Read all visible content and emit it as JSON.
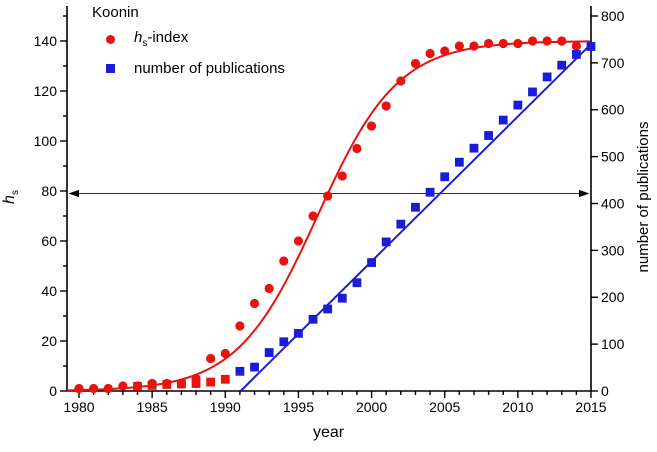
{
  "figure": {
    "legend": {
      "title": "Koonin",
      "item1": {
        "h": "h",
        "sub": "s",
        "rest": "-index"
      },
      "item2": {
        "label": "number of publications"
      }
    },
    "axes": {
      "x_label": "year",
      "y_left_label": {
        "h": "h",
        "sub": "s"
      },
      "y_right_label": "number of publications"
    }
  },
  "chart_data": {
    "type": "scatter",
    "title": "Koonin",
    "xlabel": "year",
    "ylabel_left": "h_s",
    "ylabel_right": "number of publications",
    "xlim": [
      1979.18,
      2015
    ],
    "ylim_left": [
      0,
      154
    ],
    "ylim_right": [
      0,
      821.33
    ],
    "x_major_ticks": [
      1980,
      1985,
      1990,
      1995,
      2000,
      2005,
      2010,
      2015
    ],
    "x_minor_step": 1,
    "left_major_ticks": [
      0,
      20,
      40,
      60,
      80,
      100,
      120,
      140
    ],
    "left_minor_step": 10,
    "right_major_ticks": [
      0,
      100,
      200,
      300,
      400,
      500,
      600,
      700,
      800
    ],
    "grid": false,
    "legend_position": "top-left",
    "colors": {
      "red": "#e8120e",
      "blue": "#1b1bd8",
      "arrow": "#333333",
      "axis": "#000000"
    },
    "series": [
      {
        "name": "hs-index",
        "marker": "circle",
        "axis": "left",
        "color": "#e8120e",
        "points": [
          [
            1980,
            1
          ],
          [
            1981,
            1
          ],
          [
            1982,
            1
          ],
          [
            1983,
            2
          ],
          [
            1984,
            2
          ],
          [
            1985,
            3
          ],
          [
            1986,
            3
          ],
          [
            1987,
            3
          ],
          [
            1988,
            5
          ],
          [
            1989,
            13
          ],
          [
            1990,
            15
          ],
          [
            1991,
            26
          ],
          [
            1992,
            35
          ],
          [
            1993,
            41
          ],
          [
            1994,
            52
          ],
          [
            1995,
            60
          ],
          [
            1996,
            70
          ],
          [
            1997,
            78
          ],
          [
            1998,
            86
          ],
          [
            1999,
            97
          ],
          [
            2000,
            106
          ],
          [
            2001,
            114
          ],
          [
            2002,
            124
          ],
          [
            2003,
            131
          ],
          [
            2004,
            135
          ],
          [
            2005,
            136
          ],
          [
            2006,
            138
          ],
          [
            2007,
            138
          ],
          [
            2008,
            139
          ],
          [
            2009,
            139
          ],
          [
            2010,
            139
          ],
          [
            2011,
            140
          ],
          [
            2012,
            140
          ],
          [
            2013,
            140
          ],
          [
            2014,
            138
          ]
        ]
      },
      {
        "name": "number of publications",
        "marker": "square",
        "axis": "right",
        "color": "#1b1bd8",
        "color_switch": {
          "before_year": 1991,
          "color": "#e8120e"
        },
        "points": [
          [
            1984,
            10
          ],
          [
            1985,
            12
          ],
          [
            1986,
            14
          ],
          [
            1987,
            15
          ],
          [
            1988,
            16
          ],
          [
            1989,
            19
          ],
          [
            1990,
            25
          ],
          [
            1991,
            42
          ],
          [
            1992,
            51
          ],
          [
            1993,
            82
          ],
          [
            1994,
            105
          ],
          [
            1995,
            123
          ],
          [
            1996,
            153
          ],
          [
            1997,
            175
          ],
          [
            1998,
            198
          ],
          [
            1999,
            231
          ],
          [
            2000,
            274
          ],
          [
            2001,
            318
          ],
          [
            2002,
            356
          ],
          [
            2003,
            392
          ],
          [
            2004,
            424
          ],
          [
            2005,
            457
          ],
          [
            2006,
            488
          ],
          [
            2007,
            518
          ],
          [
            2008,
            545
          ],
          [
            2009,
            578
          ],
          [
            2010,
            610
          ],
          [
            2011,
            638
          ],
          [
            2012,
            670
          ],
          [
            2013,
            695
          ],
          [
            2014,
            718
          ],
          [
            2015,
            735
          ]
        ]
      }
    ],
    "fits": [
      {
        "series": "hs-index",
        "type": "logistic",
        "L": 140,
        "t0": 1996.3,
        "tau": 2.75,
        "axis": "left",
        "color": "#e8120e",
        "x_range": [
          1979.18,
          2015
        ]
      },
      {
        "series": "number of publications",
        "type": "linear",
        "x0": 1991.05,
        "slope": 30.9,
        "axis": "right",
        "color": "#1b1bd8",
        "x_range": [
          1991.05,
          2015
        ]
      }
    ],
    "annotation_arrow": {
      "axis": "left",
      "value": 79,
      "style": "horizontal double-headed arrow between axes"
    }
  }
}
